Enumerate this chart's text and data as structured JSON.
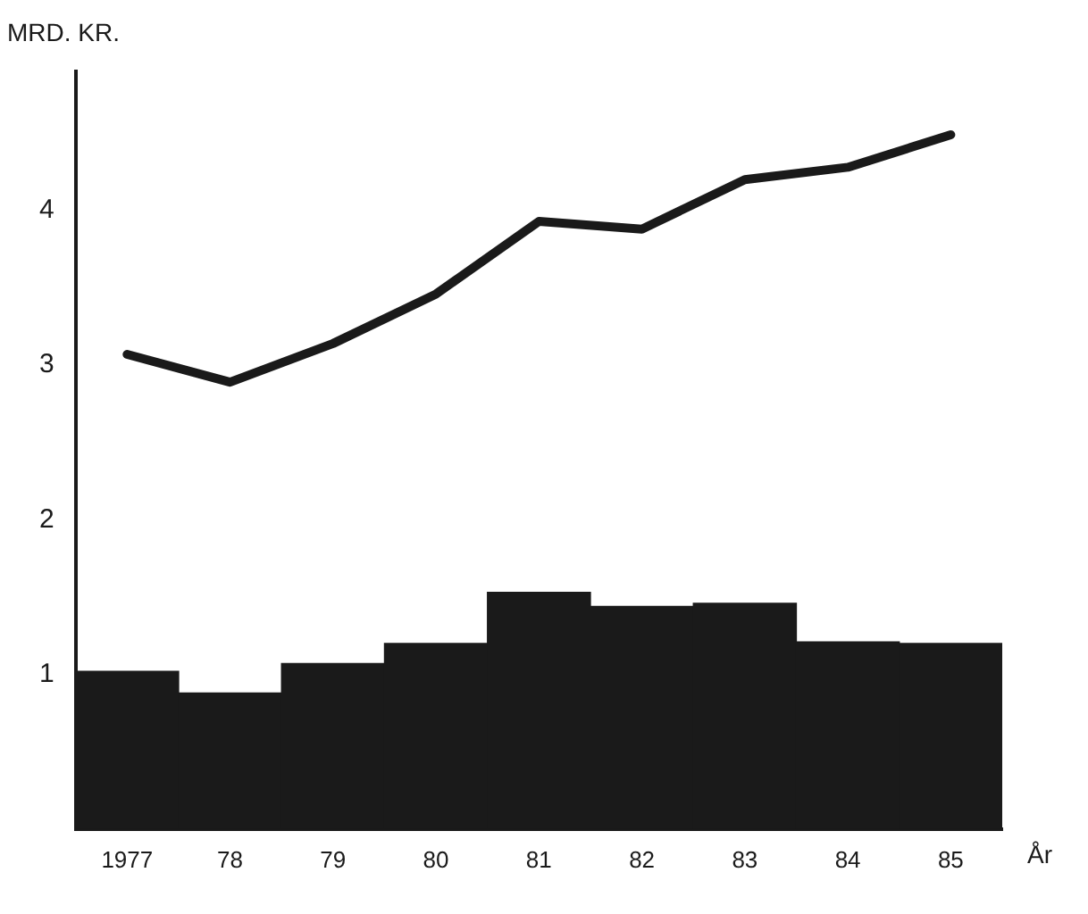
{
  "chart_data": {
    "type": "bar",
    "ylabel": "MRD. KR.",
    "xlabel": "År",
    "categories": [
      "1977",
      "78",
      "79",
      "80",
      "81",
      "82",
      "83",
      "84",
      "85"
    ],
    "series": [
      {
        "color": "#1a1a1a",
        "values": [
          1.02,
          0.88,
          1.07,
          1.2,
          1.53,
          1.44,
          1.46,
          1.21,
          1.2
        ]
      },
      {
        "type": "line",
        "color": "#1a1a1a",
        "values": [
          3.07,
          2.89,
          3.14,
          3.46,
          3.93,
          3.88,
          4.2,
          4.28,
          4.49
        ]
      }
    ],
    "ylim": [
      0,
      4.9
    ],
    "yticks": [
      1,
      2,
      3,
      4
    ],
    "grid": false,
    "legend": false,
    "marker": "none",
    "line_style": "solid"
  }
}
